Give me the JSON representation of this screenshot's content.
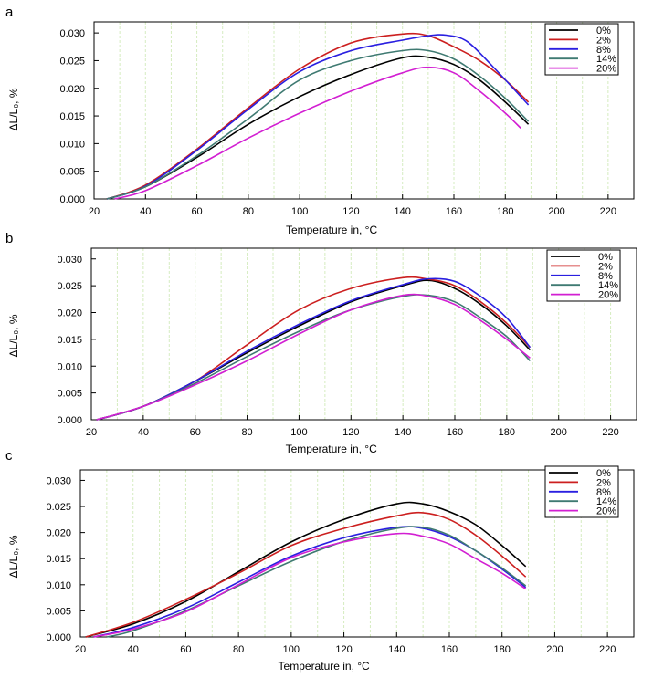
{
  "figure": {
    "colors": {
      "0%": "#000000",
      "2%": "#cc1f1f",
      "8%": "#2a1fe0",
      "14%": "#3f7a72",
      "20%": "#d21fd2",
      "grid": "#d6ecc0"
    }
  },
  "chart_data": [
    {
      "panel": "a",
      "type": "line",
      "xlabel": "Temperature in, °C",
      "ylabel": "ΔL/L₀, %",
      "xlim": [
        20,
        230
      ],
      "ylim": [
        0,
        0.032
      ],
      "xticks": [
        20,
        40,
        60,
        80,
        100,
        120,
        140,
        160,
        180,
        200,
        220
      ],
      "yticks": [
        "0.000",
        "0.005",
        "0.010",
        "0.015",
        "0.020",
        "0.025",
        "0.030"
      ],
      "grid": "vertical",
      "legend": "top-right",
      "series": [
        {
          "name": "0%",
          "x": [
            25,
            40,
            60,
            80,
            100,
            120,
            140,
            150,
            160,
            170,
            180,
            189
          ],
          "y": [
            0,
            0.0022,
            0.0075,
            0.0135,
            0.0185,
            0.0225,
            0.0255,
            0.0256,
            0.0243,
            0.0215,
            0.0175,
            0.0135
          ]
        },
        {
          "name": "2%",
          "x": [
            25,
            40,
            60,
            80,
            100,
            120,
            140,
            150,
            160,
            170,
            180,
            189
          ],
          "y": [
            0,
            0.0025,
            0.009,
            0.0165,
            0.0235,
            0.0282,
            0.0298,
            0.0295,
            0.0275,
            0.025,
            0.0215,
            0.0175
          ]
        },
        {
          "name": "8%",
          "x": [
            25,
            40,
            60,
            80,
            100,
            120,
            140,
            150,
            157,
            165,
            175,
            189
          ],
          "y": [
            0,
            0.0023,
            0.0088,
            0.0162,
            0.023,
            0.0268,
            0.0287,
            0.0295,
            0.0296,
            0.0285,
            0.024,
            0.017
          ]
        },
        {
          "name": "14%",
          "x": [
            25,
            40,
            60,
            80,
            100,
            120,
            140,
            150,
            160,
            170,
            180,
            189
          ],
          "y": [
            0,
            0.0022,
            0.0078,
            0.0145,
            0.0215,
            0.025,
            0.0268,
            0.0268,
            0.0253,
            0.0222,
            0.0182,
            0.014
          ]
        },
        {
          "name": "20%",
          "x": [
            28,
            40,
            60,
            80,
            100,
            120,
            140,
            150,
            160,
            170,
            180,
            186
          ],
          "y": [
            0,
            0.0015,
            0.006,
            0.011,
            0.0155,
            0.0195,
            0.0228,
            0.0238,
            0.0228,
            0.0195,
            0.0155,
            0.0128
          ]
        }
      ]
    },
    {
      "panel": "b",
      "type": "line",
      "xlabel": "Temperature in, °C",
      "ylabel": "ΔL/L₀, %",
      "xlim": [
        20,
        230
      ],
      "ylim": [
        0,
        0.032
      ],
      "xticks": [
        20,
        40,
        60,
        80,
        100,
        120,
        140,
        160,
        180,
        200,
        220
      ],
      "yticks": [
        "0.000",
        "0.005",
        "0.010",
        "0.015",
        "0.020",
        "0.025",
        "0.030"
      ],
      "grid": "vertical",
      "legend": "top-right",
      "series": [
        {
          "name": "0%",
          "x": [
            22,
            40,
            60,
            80,
            100,
            120,
            140,
            150,
            160,
            170,
            180,
            189
          ],
          "y": [
            0,
            0.0025,
            0.0072,
            0.0125,
            0.0175,
            0.022,
            0.025,
            0.026,
            0.0245,
            0.0215,
            0.0175,
            0.013
          ]
        },
        {
          "name": "2%",
          "x": [
            22,
            40,
            60,
            80,
            100,
            120,
            140,
            150,
            160,
            170,
            180,
            189
          ],
          "y": [
            0,
            0.0025,
            0.0072,
            0.014,
            0.0205,
            0.0245,
            0.0265,
            0.0262,
            0.025,
            0.022,
            0.018,
            0.0135
          ]
        },
        {
          "name": "8%",
          "x": [
            22,
            40,
            60,
            80,
            100,
            120,
            140,
            150,
            160,
            170,
            180,
            189
          ],
          "y": [
            0,
            0.0025,
            0.0072,
            0.0128,
            0.0178,
            0.0222,
            0.0252,
            0.0263,
            0.0258,
            0.023,
            0.019,
            0.0135
          ]
        },
        {
          "name": "14%",
          "x": [
            22,
            40,
            60,
            80,
            100,
            120,
            140,
            150,
            160,
            170,
            180,
            189
          ],
          "y": [
            0,
            0.0025,
            0.0068,
            0.0118,
            0.0165,
            0.0205,
            0.023,
            0.0232,
            0.022,
            0.019,
            0.0155,
            0.011
          ]
        },
        {
          "name": "20%",
          "x": [
            22,
            40,
            60,
            80,
            100,
            120,
            140,
            150,
            160,
            170,
            180,
            189
          ],
          "y": [
            0,
            0.0025,
            0.0065,
            0.011,
            0.016,
            0.0205,
            0.0232,
            0.023,
            0.0215,
            0.0185,
            0.015,
            0.0115
          ]
        }
      ]
    },
    {
      "panel": "c",
      "type": "line",
      "xlabel": "Temperature in, °C",
      "ylabel": "ΔL/L₀, %",
      "xlim": [
        20,
        230
      ],
      "ylim": [
        0,
        0.032
      ],
      "xticks": [
        20,
        40,
        60,
        80,
        100,
        120,
        140,
        160,
        180,
        200,
        220
      ],
      "yticks": [
        "0.000",
        "0.005",
        "0.010",
        "0.015",
        "0.020",
        "0.025",
        "0.030"
      ],
      "grid": "vertical",
      "legend": "top-right",
      "series": [
        {
          "name": "0%",
          "x": [
            22,
            40,
            60,
            80,
            100,
            120,
            140,
            150,
            160,
            170,
            180,
            189
          ],
          "y": [
            0,
            0.0025,
            0.0068,
            0.0125,
            0.0182,
            0.0225,
            0.0255,
            0.0255,
            0.024,
            0.0215,
            0.0175,
            0.0135
          ]
        },
        {
          "name": "2%",
          "x": [
            22,
            40,
            60,
            80,
            100,
            120,
            140,
            150,
            160,
            170,
            180,
            189
          ],
          "y": [
            0,
            0.0028,
            0.0072,
            0.0122,
            0.0175,
            0.0208,
            0.0232,
            0.0238,
            0.0225,
            0.0195,
            0.0155,
            0.0115
          ]
        },
        {
          "name": "8%",
          "x": [
            25,
            40,
            60,
            80,
            100,
            120,
            140,
            150,
            160,
            170,
            180,
            189
          ],
          "y": [
            0,
            0.0018,
            0.0055,
            0.0105,
            0.0155,
            0.019,
            0.021,
            0.0208,
            0.0192,
            0.0165,
            0.013,
            0.0095
          ]
        },
        {
          "name": "14%",
          "x": [
            30,
            40,
            60,
            80,
            100,
            120,
            140,
            150,
            160,
            170,
            180,
            189
          ],
          "y": [
            0,
            0.0012,
            0.005,
            0.0098,
            0.0145,
            0.0183,
            0.0208,
            0.021,
            0.0195,
            0.0165,
            0.0132,
            0.0098
          ]
        },
        {
          "name": "20%",
          "x": [
            25,
            40,
            60,
            80,
            100,
            120,
            140,
            150,
            160,
            170,
            180,
            189
          ],
          "y": [
            0,
            0.0015,
            0.0048,
            0.01,
            0.0152,
            0.0182,
            0.0198,
            0.0193,
            0.0178,
            0.015,
            0.0122,
            0.0092
          ]
        }
      ]
    }
  ]
}
